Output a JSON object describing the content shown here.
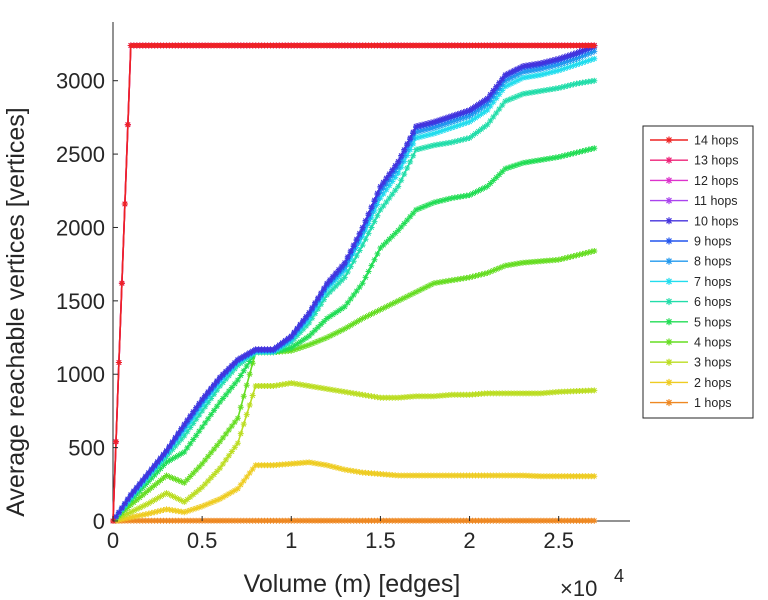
{
  "chart_data": {
    "type": "line",
    "title": "",
    "xlabel": "Volume (m) [edges]",
    "ylabel": "Average reachable vertices [vertices]",
    "x_exponent_base": "×10",
    "x_exponent_power": "4",
    "xlim": [
      0,
      2.9
    ],
    "ylim": [
      0,
      3400
    ],
    "xticks": [
      0,
      0.5,
      1,
      1.5,
      2,
      2.5
    ],
    "xtick_labels": [
      "0",
      "0.5",
      "1",
      "1.5",
      "2",
      "2.5"
    ],
    "yticks": [
      0,
      500,
      1000,
      1500,
      2000,
      2500,
      3000
    ],
    "ytick_labels": [
      "0",
      "500",
      "1000",
      "1500",
      "2000",
      "2500",
      "3000"
    ],
    "grid": false,
    "legend_position": "right",
    "x": [
      0,
      0.1,
      0.2,
      0.3,
      0.4,
      0.5,
      0.6,
      0.7,
      0.8,
      0.9,
      1.0,
      1.1,
      1.2,
      1.3,
      1.4,
      1.5,
      1.6,
      1.7,
      1.8,
      1.9,
      2.0,
      2.1,
      2.2,
      2.3,
      2.4,
      2.5,
      2.6,
      2.7
    ],
    "series": [
      {
        "name": "14 hops",
        "color": "#ee2222",
        "values": [
          0,
          3240,
          3240,
          3240,
          3240,
          3240,
          3240,
          3240,
          3240,
          3240,
          3240,
          3240,
          3240,
          3240,
          3240,
          3240,
          3240,
          3240,
          3240,
          3240,
          3240,
          3240,
          3240,
          3240,
          3240,
          3240,
          3240,
          3240
        ]
      },
      {
        "name": "13 hops",
        "color": "#ee2277",
        "values": [
          0,
          3240,
          3240,
          3240,
          3240,
          3240,
          3240,
          3240,
          3240,
          3240,
          3240,
          3240,
          3240,
          3240,
          3240,
          3240,
          3240,
          3240,
          3240,
          3240,
          3240,
          3240,
          3240,
          3240,
          3240,
          3240,
          3240,
          3240
        ]
      },
      {
        "name": "12 hops",
        "color": "#dd33cc",
        "values": [
          0,
          3240,
          3240,
          3240,
          3240,
          3240,
          3240,
          3240,
          3240,
          3240,
          3240,
          3240,
          3240,
          3240,
          3240,
          3240,
          3240,
          3240,
          3240,
          3240,
          3240,
          3240,
          3240,
          3240,
          3240,
          3240,
          3240,
          3240
        ]
      },
      {
        "name": "11 hops",
        "color": "#aa44ee",
        "values": [
          0,
          3240,
          3240,
          3240,
          3240,
          3240,
          3240,
          3240,
          3240,
          3240,
          3240,
          3240,
          3240,
          3240,
          3240,
          3240,
          3240,
          3240,
          3240,
          3240,
          3240,
          3240,
          3240,
          3240,
          3240,
          3240,
          3240,
          3240
        ]
      },
      {
        "name": "10 hops",
        "color": "#4433dd",
        "values": [
          0,
          180,
          330,
          480,
          660,
          830,
          980,
          1100,
          1170,
          1170,
          1260,
          1420,
          1620,
          1760,
          2000,
          2280,
          2450,
          2690,
          2720,
          2760,
          2800,
          2880,
          3040,
          3100,
          3120,
          3150,
          3190,
          3240
        ]
      },
      {
        "name": "9 hops",
        "color": "#2255ee",
        "values": [
          0,
          175,
          325,
          475,
          650,
          820,
          975,
          1095,
          1165,
          1165,
          1255,
          1410,
          1610,
          1750,
          1990,
          2270,
          2440,
          2680,
          2710,
          2750,
          2790,
          2870,
          3030,
          3090,
          3110,
          3140,
          3180,
          3230
        ]
      },
      {
        "name": "8 hops",
        "color": "#2299ee",
        "values": [
          0,
          170,
          320,
          470,
          640,
          810,
          965,
          1090,
          1160,
          1160,
          1245,
          1400,
          1600,
          1730,
          1970,
          2240,
          2410,
          2650,
          2680,
          2720,
          2760,
          2840,
          3000,
          3060,
          3080,
          3110,
          3150,
          3200
        ]
      },
      {
        "name": "7 hops",
        "color": "#22ddee",
        "values": [
          0,
          165,
          315,
          460,
          620,
          790,
          950,
          1080,
          1155,
          1155,
          1235,
          1380,
          1580,
          1710,
          1940,
          2200,
          2370,
          2610,
          2640,
          2680,
          2720,
          2800,
          2960,
          3020,
          3040,
          3070,
          3110,
          3150
        ]
      },
      {
        "name": "6 hops",
        "color": "#22ddaa",
        "values": [
          0,
          155,
          300,
          440,
          580,
          750,
          920,
          1060,
          1150,
          1150,
          1220,
          1350,
          1540,
          1660,
          1880,
          2120,
          2280,
          2530,
          2560,
          2580,
          2610,
          2700,
          2860,
          2910,
          2930,
          2950,
          2980,
          3000
        ]
      },
      {
        "name": "5 hops",
        "color": "#22dd55",
        "values": [
          0,
          140,
          270,
          400,
          470,
          640,
          810,
          960,
          1150,
          1150,
          1180,
          1260,
          1380,
          1460,
          1620,
          1860,
          1980,
          2120,
          2170,
          2200,
          2220,
          2280,
          2400,
          2440,
          2460,
          2480,
          2510,
          2540
        ]
      },
      {
        "name": "4 hops",
        "color": "#66dd22",
        "values": [
          0,
          110,
          210,
          310,
          260,
          390,
          540,
          700,
          1150,
          1150,
          1160,
          1200,
          1250,
          1310,
          1380,
          1440,
          1500,
          1560,
          1620,
          1640,
          1660,
          1690,
          1740,
          1760,
          1770,
          1780,
          1810,
          1840
        ]
      },
      {
        "name": "3 hops",
        "color": "#bbdd22",
        "values": [
          0,
          60,
          120,
          190,
          130,
          230,
          360,
          530,
          920,
          920,
          940,
          920,
          900,
          880,
          860,
          840,
          840,
          850,
          850,
          860,
          860,
          870,
          870,
          870,
          870,
          880,
          885,
          890
        ]
      },
      {
        "name": "2 hops",
        "color": "#eecc22",
        "values": [
          0,
          25,
          50,
          80,
          60,
          100,
          150,
          220,
          380,
          380,
          390,
          400,
          380,
          350,
          330,
          320,
          310,
          310,
          310,
          310,
          310,
          310,
          310,
          310,
          305,
          305,
          305,
          305
        ]
      },
      {
        "name": "1 hops",
        "color": "#ee8822",
        "values": [
          0,
          2,
          2,
          2,
          2,
          2,
          2,
          2,
          2,
          2,
          2,
          2,
          2,
          2,
          2,
          2,
          2,
          2,
          2,
          2,
          2,
          2,
          2,
          2,
          2,
          2,
          2,
          2
        ]
      }
    ]
  }
}
